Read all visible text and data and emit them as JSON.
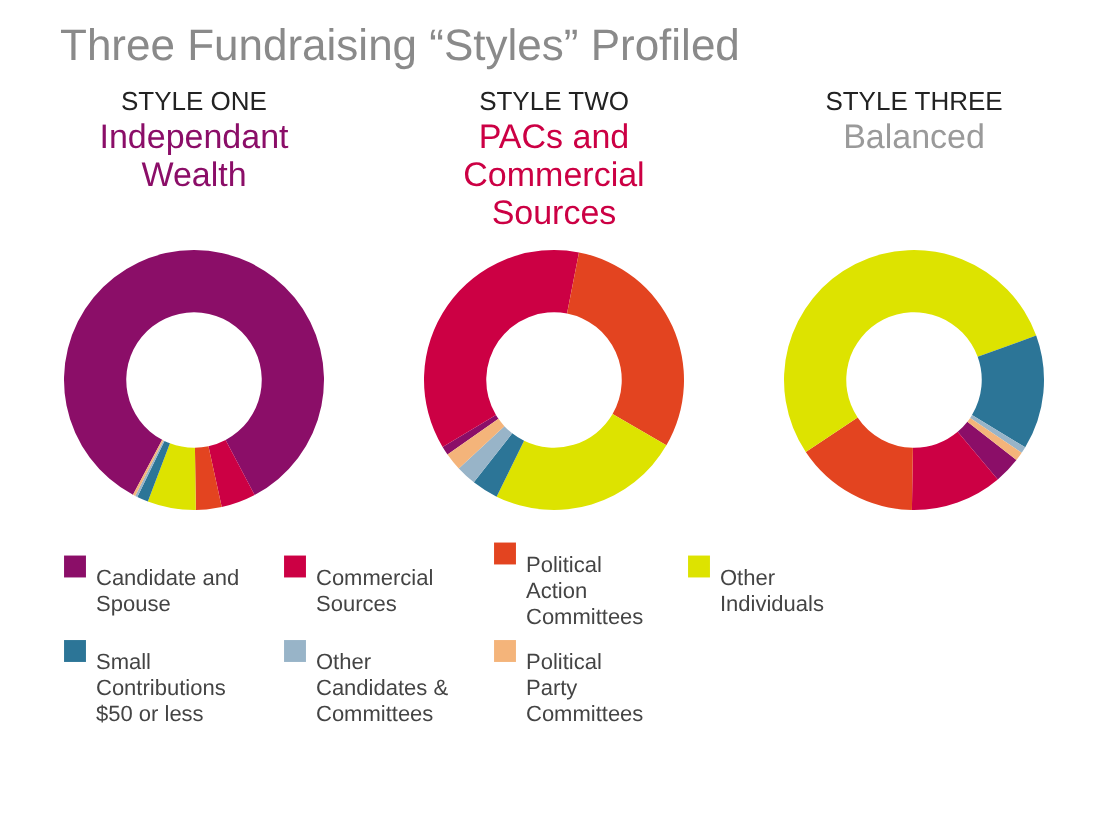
{
  "chart_data": {
    "type": "donut",
    "title": "Three Fundraising “Styles” Profiled",
    "legend": "bottom",
    "categories": [
      "Candidate and Spouse",
      "Commercial Sources",
      "Political Action Committees",
      "Other Individuals",
      "Small Contributions $50 or less",
      "Other Candidates & Committees",
      "Political Party Committees"
    ],
    "colors": [
      "#8b0e68",
      "#cc0044",
      "#e34420",
      "#dde300",
      "#2c7597",
      "#98b4c8",
      "#f4b47a"
    ],
    "series": [
      {
        "name": "STYLE ONE",
        "values": [
          84.5,
          4.3,
          3.2,
          6.0,
          1.4,
          0.3,
          0.3
        ]
      },
      {
        "name": "STYLE TWO",
        "values": [
          1.1,
          36.7,
          30.3,
          23.9,
          3.3,
          2.5,
          2.2
        ]
      },
      {
        "name": "STYLE THREE",
        "values": [
          3.3,
          11.4,
          15.4,
          53.8,
          14.2,
          0.8,
          1.1
        ]
      }
    ],
    "annotations": [
      "Independant Wealth",
      "PACs and Commercial Sources",
      "Balanced"
    ]
  }
}
